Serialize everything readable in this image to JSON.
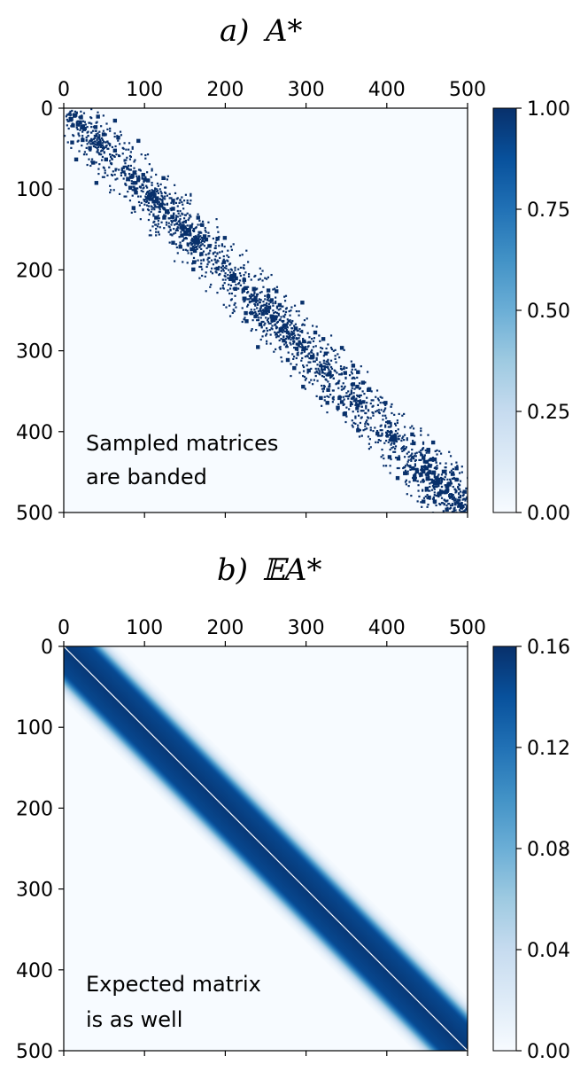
{
  "chart_data": [
    {
      "type": "heatmap",
      "panel_label": "a)",
      "title": "A*",
      "x_ticks": [
        0,
        100,
        200,
        300,
        400,
        500
      ],
      "y_ticks": [
        0,
        100,
        200,
        300,
        400,
        500
      ],
      "xlim": [
        0,
        500
      ],
      "ylim": [
        500,
        0
      ],
      "colorbar_ticks": [
        1.0,
        0.75,
        0.5,
        0.25,
        0.0
      ],
      "colorbar_tick_labels": [
        "1.00",
        "0.75",
        "0.50",
        "0.25",
        "0.00"
      ],
      "colorbar_range": [
        0,
        1
      ],
      "colormap": "Blues",
      "annotation": [
        "Sampled matrices",
        "are banded"
      ],
      "description_values": {
        "band_halfwidth_approx": 40,
        "nonzero_value": 1.0
      }
    },
    {
      "type": "heatmap",
      "panel_label": "b)",
      "title": "𝔼A*",
      "x_ticks": [
        0,
        100,
        200,
        300,
        400,
        500
      ],
      "y_ticks": [
        0,
        100,
        200,
        300,
        400,
        500
      ],
      "xlim": [
        0,
        500
      ],
      "ylim": [
        500,
        0
      ],
      "colorbar_ticks": [
        0.16,
        0.12,
        0.08,
        0.04,
        0.0
      ],
      "colorbar_tick_labels": [
        "0.16",
        "0.12",
        "0.08",
        "0.04",
        "0.00"
      ],
      "colorbar_range": [
        0,
        0.16
      ],
      "colormap": "Blues",
      "annotation": [
        "Expected matrix",
        "is as well"
      ],
      "description_values": {
        "band_halfwidth_approx": 40,
        "diagonal_value": 0.0,
        "peak_value": 0.16
      }
    }
  ],
  "colors": {
    "cmap_low": "#f7fbff",
    "cmap_mid": "#6baed6",
    "cmap_high": "#08306b"
  }
}
